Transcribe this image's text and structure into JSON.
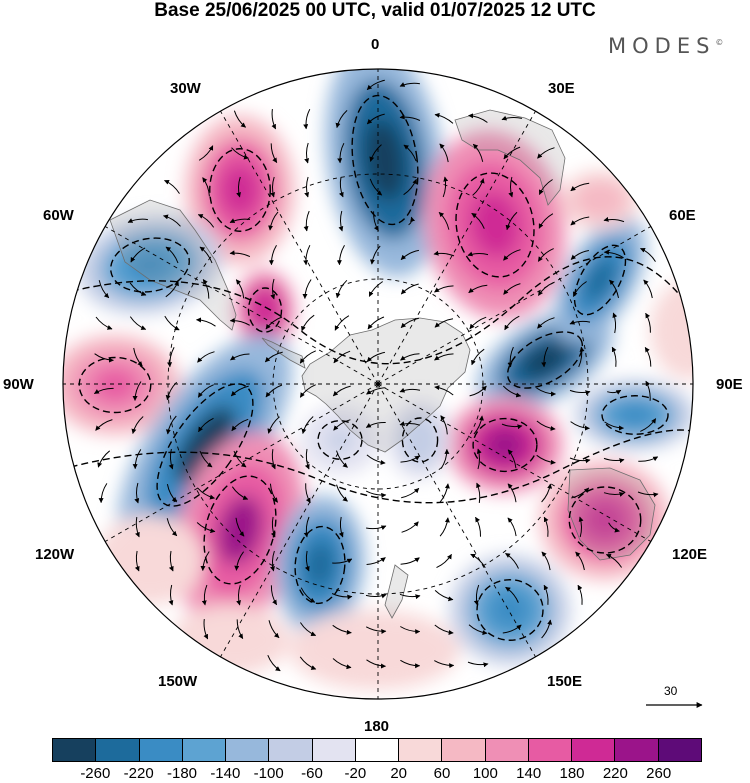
{
  "title": "Base 25/06/2025 00 UTC, valid 01/07/2025 12 UTC",
  "brand": "MODES",
  "brand_mark": "©",
  "longitude_labels": {
    "lon_0": "0",
    "lon_30e": "30E",
    "lon_60e": "60E",
    "lon_90e": "90E",
    "lon_120e": "120E",
    "lon_150e": "150E",
    "lon_180": "180",
    "lon_150w": "150W",
    "lon_120w": "120W",
    "lon_90w": "90W",
    "lon_60w": "60W",
    "lon_30w": "30W"
  },
  "vector_reference": {
    "value": "30"
  },
  "colorbar": {
    "ticks": [
      "-260",
      "-220",
      "-180",
      "-140",
      "-100",
      "-60",
      "-20",
      "20",
      "60",
      "100",
      "140",
      "180",
      "220",
      "260"
    ],
    "colors": [
      "#16405e",
      "#1d6b9c",
      "#3a8cc4",
      "#5da3d2",
      "#97b8dc",
      "#c3cde5",
      "#e3e3f1",
      "#ffffff",
      "#f8d9d9",
      "#f5b9c4",
      "#ef8fb5",
      "#e75ba3",
      "#cf2a95",
      "#9b148a",
      "#5e0b78"
    ]
  }
}
